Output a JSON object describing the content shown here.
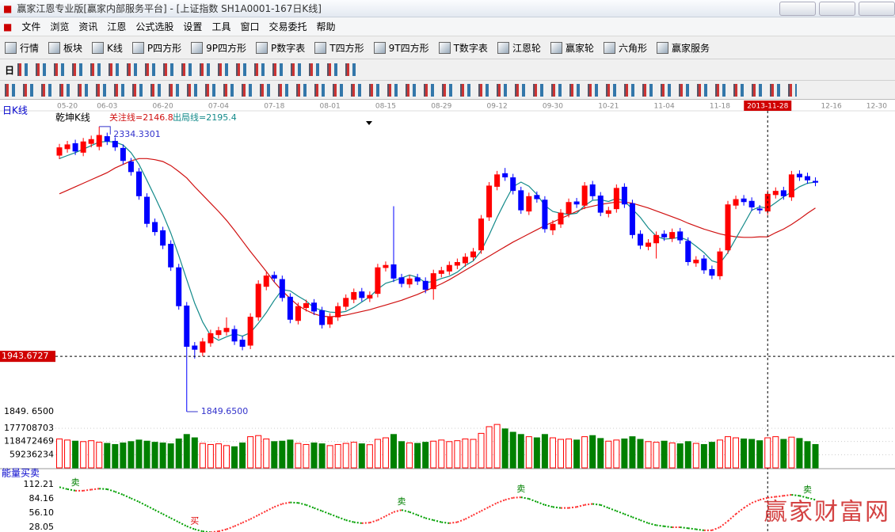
{
  "window": {
    "title": "赢家江恩专业版[赢家内部服务平台] - [上证指数  SH1A0001-167日K线]"
  },
  "menu": [
    "文件",
    "浏览",
    "资讯",
    "江恩",
    "公式选股",
    "设置",
    "工具",
    "窗口",
    "交易委托",
    "帮助"
  ],
  "toolbar": [
    "行情",
    "板块",
    "K线",
    "P四方形",
    "9P四方形",
    "P数字表",
    "T四方形",
    "9T四方形",
    "T数字表",
    "江恩轮",
    "赢家轮",
    "六角形",
    "赢家服务"
  ],
  "period": "日",
  "watermark": "赢家财富网",
  "chart_data": [
    {
      "type": "candlestick",
      "title": "日K线",
      "subtitle": "乾坤K线",
      "readout": [
        "关注线=2146.8",
        "出局线=2195.4"
      ],
      "xlim": [
        0,
        105
      ],
      "xticks": [
        {
          "value": 1,
          "label": "05-20"
        },
        {
          "value": 6,
          "label": "06-03"
        },
        {
          "value": 13,
          "label": "06-20"
        },
        {
          "value": 20,
          "label": "07-04"
        },
        {
          "value": 27,
          "label": "07-18"
        },
        {
          "value": 34,
          "label": "08-01"
        },
        {
          "value": 41,
          "label": "08-15"
        },
        {
          "value": 48,
          "label": "08-29"
        },
        {
          "value": 55,
          "label": "09-12"
        },
        {
          "value": 62,
          "label": "09-30"
        },
        {
          "value": 69,
          "label": "10-21"
        },
        {
          "value": 76,
          "label": "11-04"
        },
        {
          "value": 83,
          "label": "11-18"
        },
        {
          "value": 89,
          "label": "2013-11-28"
        },
        {
          "value": 97,
          "label": "12-16"
        },
        {
          "value": 104,
          "label": "12-30"
        }
      ],
      "ylim": [
        1846,
        2356
      ],
      "yticks": [
        {
          "value": 1849.65,
          "label": "1849. 6500"
        }
      ],
      "cursor": {
        "x": 89,
        "y": 1943.6727
      },
      "annotations": [
        {
          "x": 5,
          "value": 2334.3301
        },
        {
          "x": 16,
          "value": 1849.65,
          "label": "1849.6500"
        }
      ],
      "up_color": "#ff0000",
      "down_color": "#0000ff",
      "open": [
        2285,
        2296,
        2306,
        2290,
        2305,
        2300,
        2318,
        2310,
        2298,
        2275,
        2258,
        2215,
        2172,
        2158,
        2135,
        2095,
        2030,
        1962,
        1950,
        1966,
        1980,
        1985,
        1990,
        1972,
        1962,
        2010,
        2062,
        2082,
        2075,
        2045,
        2004,
        2026,
        2035,
        2022,
        1998,
        2010,
        2028,
        2040,
        2054,
        2042,
        2050,
        2094,
        2100,
        2078,
        2066,
        2078,
        2072,
        2058,
        2084,
        2088,
        2098,
        2102,
        2112,
        2124,
        2180,
        2232,
        2255,
        2248,
        2226,
        2190,
        2218,
        2210,
        2158,
        2168,
        2186,
        2207,
        2200,
        2236,
        2217,
        2186,
        2194,
        2232,
        2204,
        2152,
        2130,
        2136,
        2152,
        2144,
        2156,
        2140,
        2102,
        2110,
        2092,
        2080,
        2124,
        2200,
        2212,
        2208,
        2195,
        2190,
        2218,
        2226,
        2214,
        2254,
        2250,
        2242
      ],
      "high": [
        2305,
        2310,
        2312,
        2315,
        2319,
        2334.3301,
        2324,
        2316,
        2304,
        2281,
        2264,
        2221,
        2178,
        2164,
        2141,
        2101,
        2036,
        1968,
        1975,
        1989,
        1994,
        2010,
        1996,
        1978,
        2017,
        2073,
        2087,
        2088,
        2081,
        2051,
        2035,
        2040,
        2041,
        2028,
        2017,
        2035,
        2049,
        2059,
        2060,
        2054,
        2101,
        2105,
        2199,
        2084,
        2082,
        2084,
        2078,
        2091,
        2096,
        2105,
        2110,
        2119,
        2128,
        2184,
        2240,
        2259,
        2264,
        2254,
        2232,
        2222,
        2224,
        2216,
        2175,
        2194,
        2212,
        2213,
        2240,
        2242,
        2223,
        2198,
        2236,
        2238,
        2210,
        2158,
        2143,
        2156,
        2158,
        2161,
        2162,
        2146,
        2114,
        2116,
        2098,
        2128,
        2208,
        2217,
        2218,
        2214,
        2201,
        2226,
        2231,
        2232,
        2259,
        2260,
        2256,
        2248
      ],
      "low": [
        2279,
        2290,
        2286,
        2284,
        2299,
        2294,
        2303,
        2293,
        2270,
        2251,
        2210,
        2163,
        2149,
        2126,
        2089,
        2023,
        1849.65,
        1940,
        1944,
        1960,
        1974,
        1979,
        1963,
        1954,
        1956,
        2004,
        2056,
        2070,
        2037,
        2000,
        1998,
        2020,
        2014,
        1991,
        1992,
        2004,
        2022,
        2034,
        2037,
        2036,
        2044,
        2088,
        2070,
        2061,
        2060,
        2065,
        2051,
        2040,
        2078,
        2082,
        2092,
        2096,
        2106,
        2118,
        2174,
        2226,
        2242,
        2219,
        2186,
        2184,
        2205,
        2154,
        2150,
        2162,
        2180,
        2196,
        2194,
        2210,
        2182,
        2180,
        2188,
        2196,
        2144,
        2126,
        2124,
        2110,
        2140,
        2138,
        2135,
        2098,
        2096,
        2084,
        2075,
        2074,
        2118,
        2194,
        2200,
        2191,
        2186,
        2184,
        2212,
        2210,
        2208,
        2242,
        2237,
        2233
      ],
      "close": [
        2299,
        2304,
        2292,
        2309,
        2313,
        2320,
        2309,
        2299,
        2276,
        2257,
        2216,
        2169,
        2155,
        2132,
        2095,
        2029,
        1960,
        1955,
        1969,
        1983,
        1988,
        1992,
        1969,
        1960,
        2011,
        2067,
        2081,
        2076,
        2043,
        2006,
        2029,
        2034,
        2020,
        1997,
        2011,
        2029,
        2043,
        2053,
        2043,
        2048,
        2095,
        2099,
        2076,
        2067,
        2076,
        2071,
        2057,
        2085,
        2090,
        2099,
        2104,
        2113,
        2122,
        2178,
        2234,
        2253,
        2248,
        2225,
        2192,
        2216,
        2211,
        2160,
        2169,
        2188,
        2206,
        2202,
        2234,
        2216,
        2188,
        2192,
        2230,
        2202,
        2150,
        2132,
        2137,
        2150,
        2146,
        2155,
        2141,
        2104,
        2108,
        2090,
        2081,
        2122,
        2202,
        2211,
        2206,
        2197,
        2192,
        2220,
        2225,
        2216,
        2253,
        2248,
        2243,
        2239
      ],
      "series": [
        {
          "color": "#d01010",
          "values": [
            2220,
            2226,
            2232,
            2238,
            2244,
            2250,
            2256,
            2264,
            2270,
            2276,
            2280,
            2280,
            2278,
            2275,
            2268,
            2258,
            2247,
            2232,
            2218,
            2204,
            2190,
            2175,
            2158,
            2140,
            2122,
            2105,
            2088,
            2070,
            2055,
            2042,
            2030,
            2022,
            2016,
            2012,
            2011,
            2012,
            2014,
            2017,
            2020,
            2023,
            2027,
            2031,
            2035,
            2039,
            2044,
            2049,
            2055,
            2061,
            2067,
            2074,
            2082,
            2090,
            2098,
            2106,
            2114,
            2122,
            2130,
            2138,
            2145,
            2152,
            2159,
            2166,
            2172,
            2178,
            2184,
            2190,
            2196,
            2199,
            2202,
            2204,
            2206,
            2206,
            2204,
            2200,
            2196,
            2191,
            2186,
            2181,
            2176,
            2170,
            2165,
            2160,
            2156,
            2152,
            2149,
            2147,
            2146,
            2146,
            2147,
            2146.8,
            2154,
            2160,
            2168,
            2177,
            2187,
            2196
          ]
        },
        {
          "color": "#138a8a",
          "values": [
            2280,
            2285,
            2290,
            2296,
            2302,
            2308,
            2309,
            2308,
            2303,
            2290,
            2270,
            2243,
            2215,
            2186,
            2153,
            2115,
            2074,
            2034,
            2002,
            1979,
            1971,
            1977,
            1982,
            1978,
            1984,
            2000,
            2018,
            2039,
            2057,
            2055,
            2046,
            2038,
            2026,
            2022,
            2019,
            2018,
            2020,
            2027,
            2036,
            2045,
            2058,
            2068,
            2072,
            2077,
            2082,
            2078,
            2069,
            2071,
            2076,
            2080,
            2087,
            2098,
            2106,
            2123,
            2150,
            2180,
            2207,
            2232,
            2240,
            2233,
            2219,
            2200,
            2190,
            2187,
            2185,
            2187,
            2200,
            2209,
            2210,
            2207,
            2212,
            2208,
            2194,
            2180,
            2162,
            2148,
            2143,
            2144,
            2146,
            2141,
            2131,
            2120,
            2106,
            2102,
            2120,
            2144,
            2168,
            2192,
            2198,
            2195.4,
            2205,
            2215,
            2223,
            2232,
            2238,
            2240
          ]
        }
      ]
    },
    {
      "type": "bar",
      "ylim": [
        0,
        248800000
      ],
      "yticks": [
        59236234,
        118472469,
        177708703
      ],
      "up_color": "#ff0000",
      "down_color": "#008000",
      "values": [
        130000000,
        125000000,
        120000000,
        118000000,
        122000000,
        115000000,
        110000000,
        105000000,
        112000000,
        118000000,
        125000000,
        120000000,
        115000000,
        112000000,
        108000000,
        130000000,
        150000000,
        135000000,
        110000000,
        105000000,
        108000000,
        100000000,
        95000000,
        112000000,
        140000000,
        145000000,
        130000000,
        118000000,
        120000000,
        125000000,
        110000000,
        105000000,
        112000000,
        108000000,
        100000000,
        105000000,
        110000000,
        115000000,
        108000000,
        104000000,
        128000000,
        135000000,
        150000000,
        118000000,
        112000000,
        110000000,
        115000000,
        120000000,
        125000000,
        118000000,
        122000000,
        130000000,
        128000000,
        155000000,
        185000000,
        195000000,
        175000000,
        160000000,
        150000000,
        140000000,
        135000000,
        150000000,
        135000000,
        128000000,
        130000000,
        125000000,
        140000000,
        145000000,
        132000000,
        120000000,
        125000000,
        130000000,
        140000000,
        128000000,
        118000000,
        115000000,
        120000000,
        112000000,
        108000000,
        118000000,
        110000000,
        105000000,
        115000000,
        125000000,
        140000000,
        135000000,
        130000000,
        128000000,
        122000000,
        135000000,
        140000000,
        128000000,
        138000000,
        132000000,
        118000000,
        105000000
      ]
    },
    {
      "type": "line",
      "title": "能量买卖",
      "ylim": [
        16,
        123.1
      ],
      "yticks": [
        112.21,
        84.16,
        {
          "value": 56.1,
          "label": "56.10"
        },
        28.05
      ],
      "rise_color": "#ff3030",
      "fall_color": "#00a000",
      "values": [
        107,
        103,
        100,
        100,
        102,
        104,
        103,
        98,
        92,
        85,
        78,
        70,
        62,
        54,
        46,
        38,
        30,
        24,
        20,
        18,
        20,
        24,
        30,
        37,
        44,
        52,
        60,
        68,
        74,
        77,
        76,
        72,
        66,
        60,
        54,
        48,
        42,
        38,
        36,
        37,
        42,
        50,
        58,
        62,
        58,
        52,
        46,
        42,
        38,
        36,
        38,
        44,
        52,
        60,
        68,
        76,
        82,
        86,
        87,
        84,
        78,
        72,
        68,
        66,
        66,
        68,
        72,
        74,
        72,
        66,
        60,
        54,
        48,
        42,
        36,
        32,
        30,
        28,
        28,
        26,
        24,
        22,
        22,
        28,
        40,
        54,
        66,
        76,
        82,
        86,
        88,
        90,
        92,
        90,
        86,
        82
      ],
      "signals": [
        {
          "x": 2,
          "label": "卖",
          "color": "#008000"
        },
        {
          "x": 17,
          "label": "买",
          "color": "#e00000"
        },
        {
          "x": 43,
          "label": "卖",
          "color": "#008000"
        },
        {
          "x": 58,
          "label": "卖",
          "color": "#008000"
        },
        {
          "x": 94,
          "label": "卖",
          "color": "#008000"
        }
      ]
    }
  ]
}
